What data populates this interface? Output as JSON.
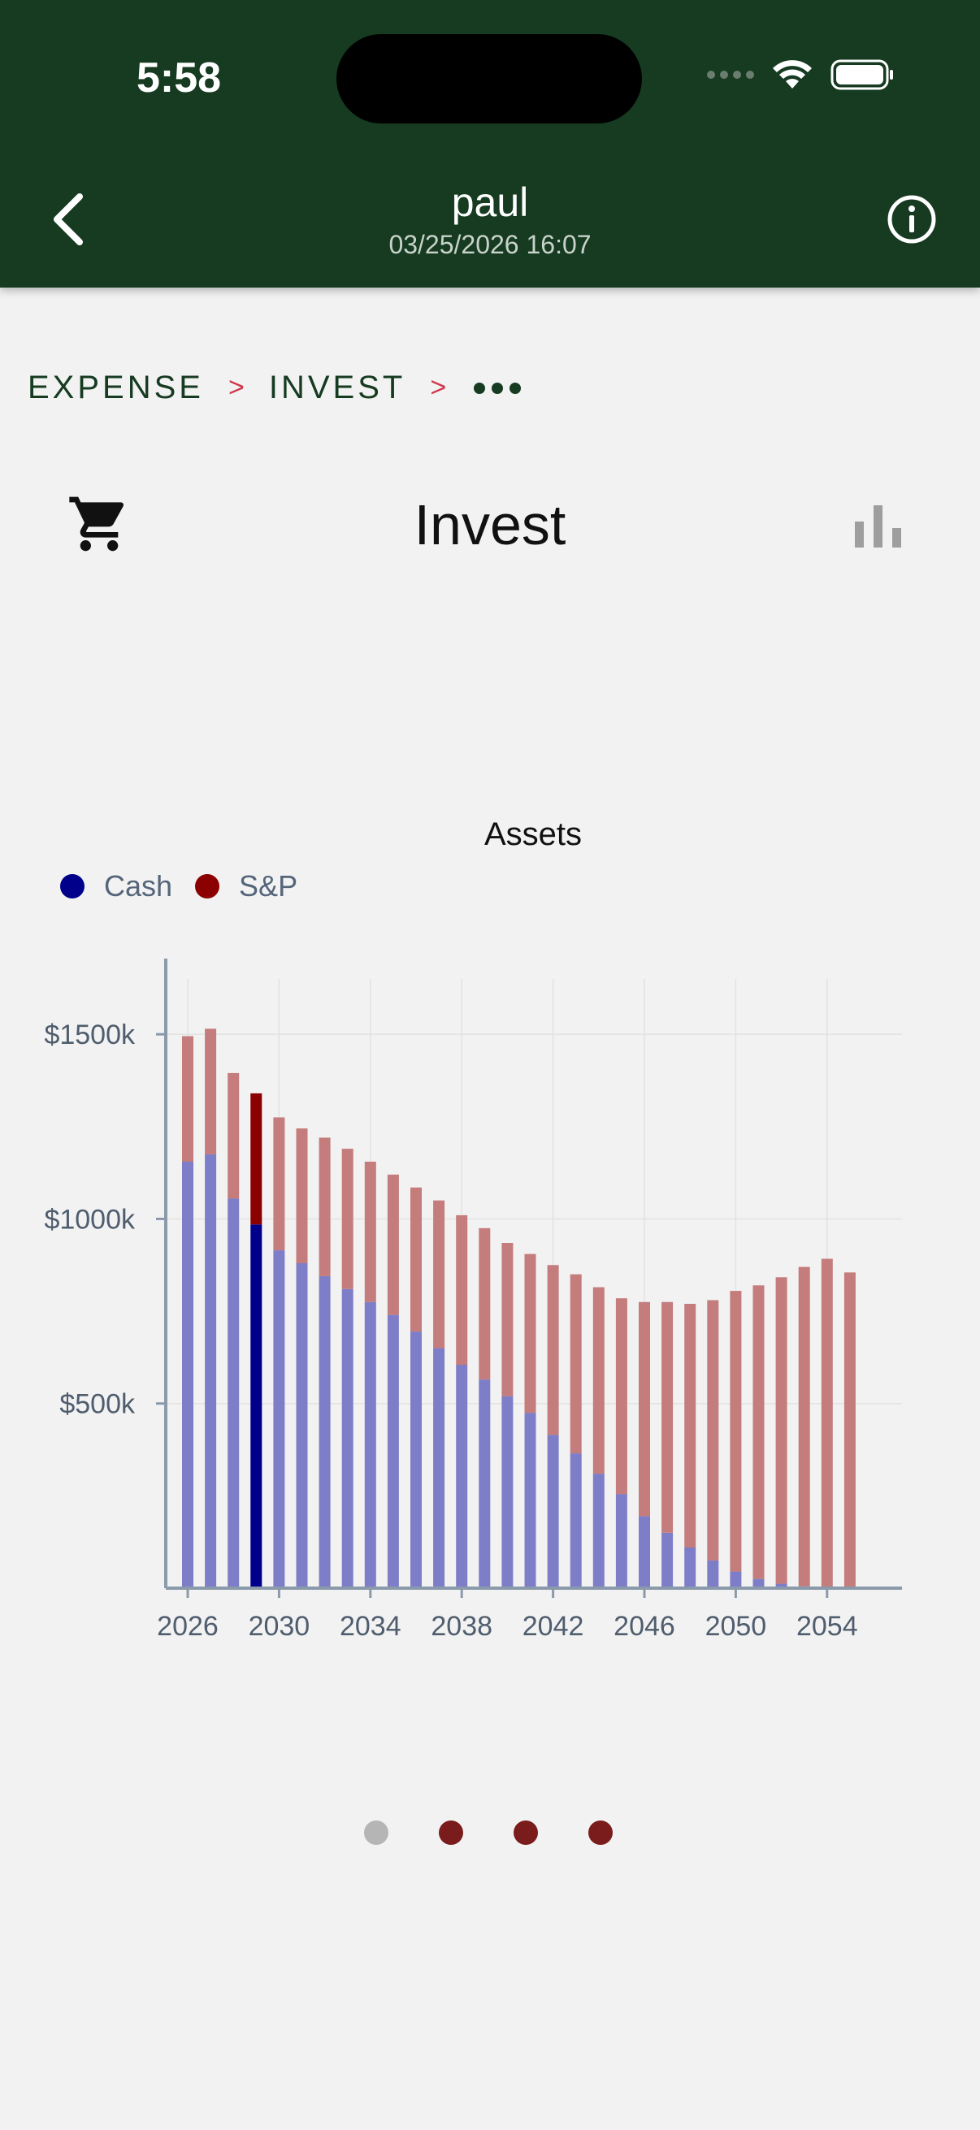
{
  "status_bar": {
    "time": "5:58"
  },
  "header": {
    "title": "paul",
    "subtitle": "03/25/2026 16:07"
  },
  "breadcrumb": {
    "items": [
      "EXPENSE",
      "INVEST"
    ],
    "separator": ">"
  },
  "page": {
    "title": "Invest"
  },
  "colors": {
    "header_bg": "#163b21",
    "cash": "#7e7ec8",
    "sp": "#c47c7c",
    "cash_selected": "#00008b",
    "sp_selected": "#8b0000",
    "legend_cash": "#00008b",
    "legend_sp": "#8b0000"
  },
  "chart_data": {
    "type": "bar",
    "stacked": true,
    "title": "Assets",
    "legend_position": "top-left",
    "grid": true,
    "x": [
      2026,
      2027,
      2028,
      2029,
      2030,
      2031,
      2032,
      2033,
      2034,
      2035,
      2036,
      2037,
      2038,
      2039,
      2040,
      2041,
      2042,
      2043,
      2044,
      2045,
      2046,
      2047,
      2048,
      2049,
      2050,
      2051,
      2052,
      2053,
      2054,
      2055
    ],
    "series": [
      {
        "name": "Cash",
        "values": [
          1155,
          1175,
          1055,
          985,
          915,
          880,
          845,
          810,
          775,
          740,
          695,
          650,
          605,
          565,
          520,
          475,
          415,
          365,
          310,
          255,
          195,
          150,
          110,
          75,
          45,
          25,
          12,
          5,
          2,
          0
        ]
      },
      {
        "name": "S&P",
        "values": [
          340,
          340,
          340,
          355,
          360,
          365,
          375,
          380,
          380,
          380,
          390,
          400,
          405,
          410,
          415,
          430,
          460,
          485,
          505,
          530,
          580,
          625,
          660,
          705,
          760,
          795,
          830,
          865,
          890,
          855
        ]
      }
    ],
    "highlighted_index": 3,
    "x_ticks": [
      2026,
      2030,
      2034,
      2038,
      2042,
      2046,
      2050,
      2054
    ],
    "y_ticks": [
      500,
      1000,
      1500
    ],
    "y_tick_labels": [
      "$500k",
      "$1000k",
      "$1500k"
    ],
    "ylim": [
      0,
      1650
    ]
  }
}
